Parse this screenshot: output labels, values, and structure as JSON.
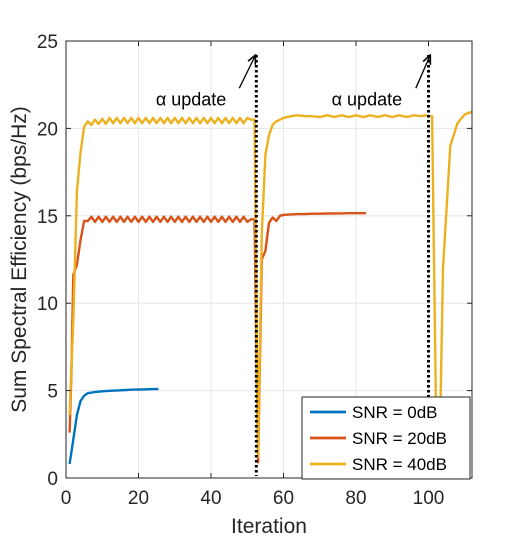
{
  "chart_data": {
    "type": "line",
    "xlabel": "Iteration",
    "ylabel": "Sum Spectral Efficiency (bps/Hz)",
    "xlim": [
      0,
      112
    ],
    "ylim": [
      0,
      25
    ],
    "xticks": [
      0,
      20,
      40,
      60,
      80,
      100
    ],
    "yticks": [
      0,
      5,
      10,
      15,
      20,
      25
    ],
    "grid": true,
    "legend_position": "bottom-right",
    "colors": {
      "SNR = 0dB": "#0072BD",
      "SNR = 20dB": "#D95319",
      "SNR = 40dB": "#EDB120",
      "marker": "#000000"
    },
    "annotations": [
      {
        "text": "α update",
        "x_line": 52.5,
        "arrow_tip": [
          52.3,
          24.2
        ],
        "arrow_tail": [
          47.8,
          22.3
        ]
      },
      {
        "text": "α update",
        "x_line": 100,
        "arrow_tip": [
          100.5,
          24.2
        ],
        "arrow_tail": [
          96.5,
          22.3
        ]
      }
    ],
    "series": [
      {
        "name": "SNR = 0dB",
        "x": [
          1,
          2,
          3,
          4,
          5,
          6,
          8,
          10,
          12,
          15,
          18,
          21,
          23,
          25.5
        ],
        "y": [
          0.8,
          2.2,
          3.6,
          4.4,
          4.7,
          4.85,
          4.92,
          4.96,
          4.99,
          5.02,
          5.05,
          5.07,
          5.08,
          5.1
        ]
      },
      {
        "name": "SNR = 20dB",
        "x": [
          1,
          1.5,
          2,
          3,
          4,
          5,
          6,
          7,
          8,
          9,
          10,
          11,
          12,
          13,
          14,
          15,
          16,
          17,
          18,
          19,
          20,
          21,
          22,
          23,
          24,
          25,
          26,
          27,
          28,
          29,
          30,
          31,
          32,
          33,
          34,
          35,
          36,
          37,
          38,
          39,
          40,
          41,
          42,
          43,
          44,
          45,
          46,
          47,
          48,
          49,
          50,
          51,
          52,
          53,
          54,
          55,
          56,
          57,
          58,
          59,
          60,
          62,
          64,
          66,
          68,
          70,
          72,
          74,
          76,
          78,
          80,
          82.8
        ],
        "y": [
          2.6,
          6.0,
          11.6,
          12.2,
          13.6,
          14.7,
          14.7,
          14.95,
          14.65,
          14.95,
          14.65,
          14.95,
          14.65,
          14.95,
          14.65,
          14.95,
          14.65,
          14.95,
          14.65,
          14.95,
          14.65,
          14.95,
          14.65,
          14.95,
          14.65,
          14.95,
          14.65,
          14.95,
          14.65,
          14.95,
          14.65,
          14.95,
          14.65,
          14.95,
          14.65,
          14.95,
          14.65,
          14.95,
          14.65,
          14.95,
          14.65,
          14.95,
          14.65,
          14.95,
          14.65,
          14.95,
          14.65,
          14.95,
          14.65,
          14.95,
          14.65,
          14.8,
          14.8,
          0.9,
          12.5,
          13.0,
          14.6,
          14.9,
          14.7,
          15.0,
          15.05,
          15.08,
          15.1,
          15.1,
          15.12,
          15.12,
          15.13,
          15.14,
          15.14,
          15.15,
          15.15,
          15.15
        ]
      },
      {
        "name": "SNR = 40dB",
        "x": [
          1,
          2,
          3,
          4,
          5,
          6,
          7,
          8,
          9,
          10,
          11,
          12,
          13,
          14,
          15,
          16,
          17,
          18,
          19,
          20,
          21,
          22,
          23,
          24,
          25,
          26,
          27,
          28,
          29,
          30,
          31,
          32,
          33,
          34,
          35,
          36,
          37,
          38,
          39,
          40,
          41,
          42,
          43,
          44,
          45,
          46,
          47,
          48,
          49,
          50,
          51,
          52,
          53,
          54,
          55,
          56,
          57,
          58,
          60,
          62,
          64,
          66,
          68,
          70,
          72,
          74,
          76,
          78,
          80,
          82,
          84,
          86,
          88,
          90,
          92,
          94,
          96,
          98,
          99,
          100,
          101,
          102,
          103,
          104,
          106,
          108,
          110,
          112
        ],
        "y": [
          3.6,
          9.0,
          16.4,
          18.6,
          20.1,
          20.4,
          20.2,
          20.5,
          20.25,
          20.55,
          20.25,
          20.6,
          20.3,
          20.6,
          20.3,
          20.6,
          20.3,
          20.6,
          20.3,
          20.6,
          20.3,
          20.6,
          20.3,
          20.6,
          20.3,
          20.6,
          20.3,
          20.6,
          20.3,
          20.6,
          20.3,
          20.6,
          20.3,
          20.6,
          20.3,
          20.6,
          20.3,
          20.6,
          20.3,
          20.6,
          20.3,
          20.6,
          20.3,
          20.6,
          20.3,
          20.6,
          20.3,
          20.6,
          20.3,
          20.6,
          20.5,
          20.5,
          1.2,
          14.0,
          18.5,
          19.6,
          20.2,
          20.4,
          20.6,
          20.7,
          20.75,
          20.7,
          20.7,
          20.65,
          20.75,
          20.65,
          20.75,
          20.65,
          20.75,
          20.65,
          20.75,
          20.65,
          20.75,
          20.65,
          20.75,
          20.65,
          20.75,
          20.7,
          20.75,
          20.7,
          20.7,
          4.8,
          0.8,
          12.0,
          19.0,
          20.3,
          20.8,
          20.95
        ]
      }
    ]
  }
}
